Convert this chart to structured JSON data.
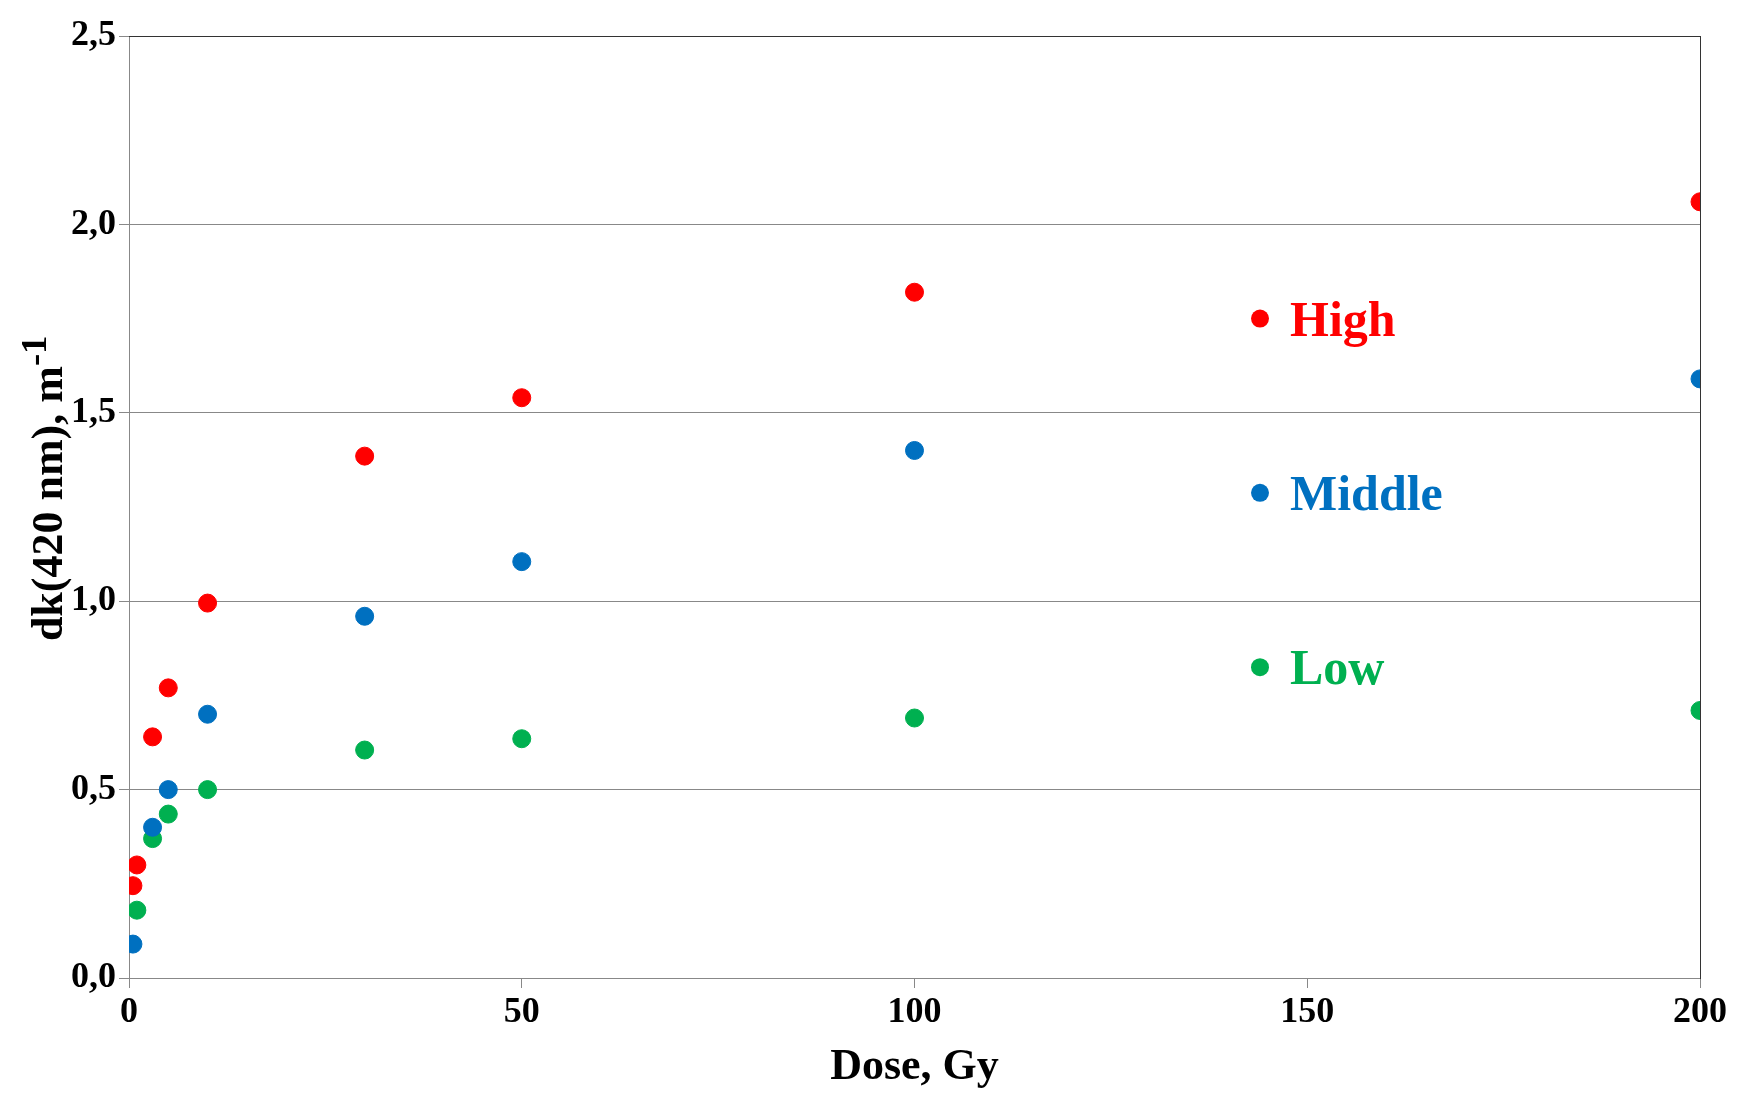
{
  "chart_data": {
    "type": "scatter",
    "xlabel": "Dose, Gy",
    "ylabel": "dk(420 nm), m$^{-1}$",
    "xlim": [
      0,
      200
    ],
    "xticks": [
      0,
      50,
      100,
      150,
      200
    ],
    "ylim": [
      0,
      2.5
    ],
    "yticks": [
      {
        "value": 0,
        "label": "0,0"
      },
      {
        "value": 0.5,
        "label": "0,5"
      },
      {
        "value": 1,
        "label": "1,0"
      },
      {
        "value": 1.5,
        "label": "1,5"
      },
      {
        "value": 2,
        "label": "2,0"
      },
      {
        "value": 2.5,
        "label": "2,5"
      }
    ],
    "grid": "y",
    "legend": "right",
    "marker": "circle",
    "series": [
      {
        "name": "High",
        "color": "#ff0000",
        "x": [
          0.5,
          1,
          3,
          5,
          10,
          30,
          50,
          100,
          200
        ],
        "values": [
          0.245,
          0.3,
          0.64,
          0.77,
          0.995,
          1.385,
          1.54,
          1.82,
          2.06
        ]
      },
      {
        "name": "Middle",
        "color": "#0070c0",
        "x": [
          0.5,
          3,
          5,
          10,
          30,
          50,
          100,
          200
        ],
        "values": [
          0.09,
          0.4,
          0.5,
          0.7,
          0.96,
          1.105,
          1.4,
          1.59
        ]
      },
      {
        "name": "Low",
        "color": "#00b050",
        "x": [
          1,
          3,
          5,
          10,
          30,
          50,
          100,
          200
        ],
        "values": [
          0.18,
          0.37,
          0.435,
          0.5,
          0.605,
          0.635,
          0.69,
          0.71
        ]
      }
    ]
  }
}
